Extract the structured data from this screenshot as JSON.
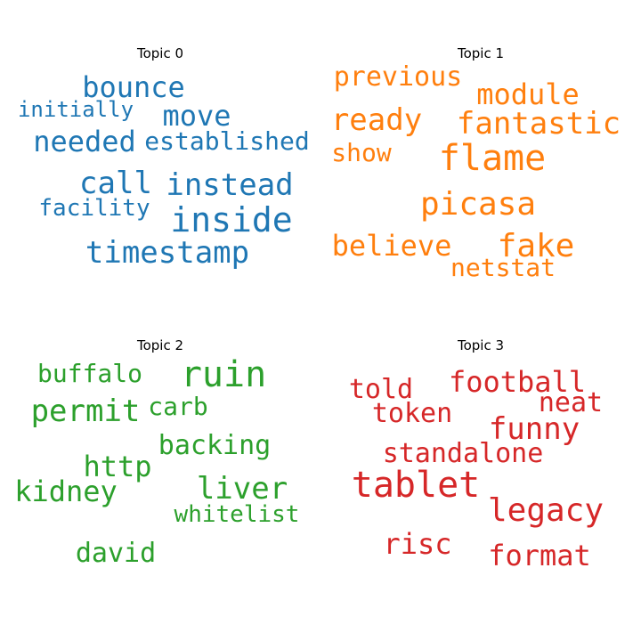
{
  "panels": [
    {
      "title": "Topic 0",
      "color": "#1f77b4",
      "words": [
        "bounce",
        "initially",
        "move",
        "needed",
        "established",
        "call",
        "instead",
        "facility",
        "inside",
        "timestamp"
      ]
    },
    {
      "title": "Topic 1",
      "color": "#ff7f0e",
      "words": [
        "previous",
        "module",
        "ready",
        "fantastic",
        "show",
        "flame",
        "picasa",
        "believe",
        "fake",
        "netstat"
      ]
    },
    {
      "title": "Topic 2",
      "color": "#2ca02c",
      "words": [
        "buffalo",
        "ruin",
        "permit",
        "carb",
        "backing",
        "http",
        "kidney",
        "liver",
        "whitelist",
        "david"
      ]
    },
    {
      "title": "Topic 3",
      "color": "#d62728",
      "words": [
        "told",
        "football",
        "neat",
        "token",
        "funny",
        "standalone",
        "tablet",
        "legacy",
        "risc",
        "format"
      ]
    }
  ]
}
